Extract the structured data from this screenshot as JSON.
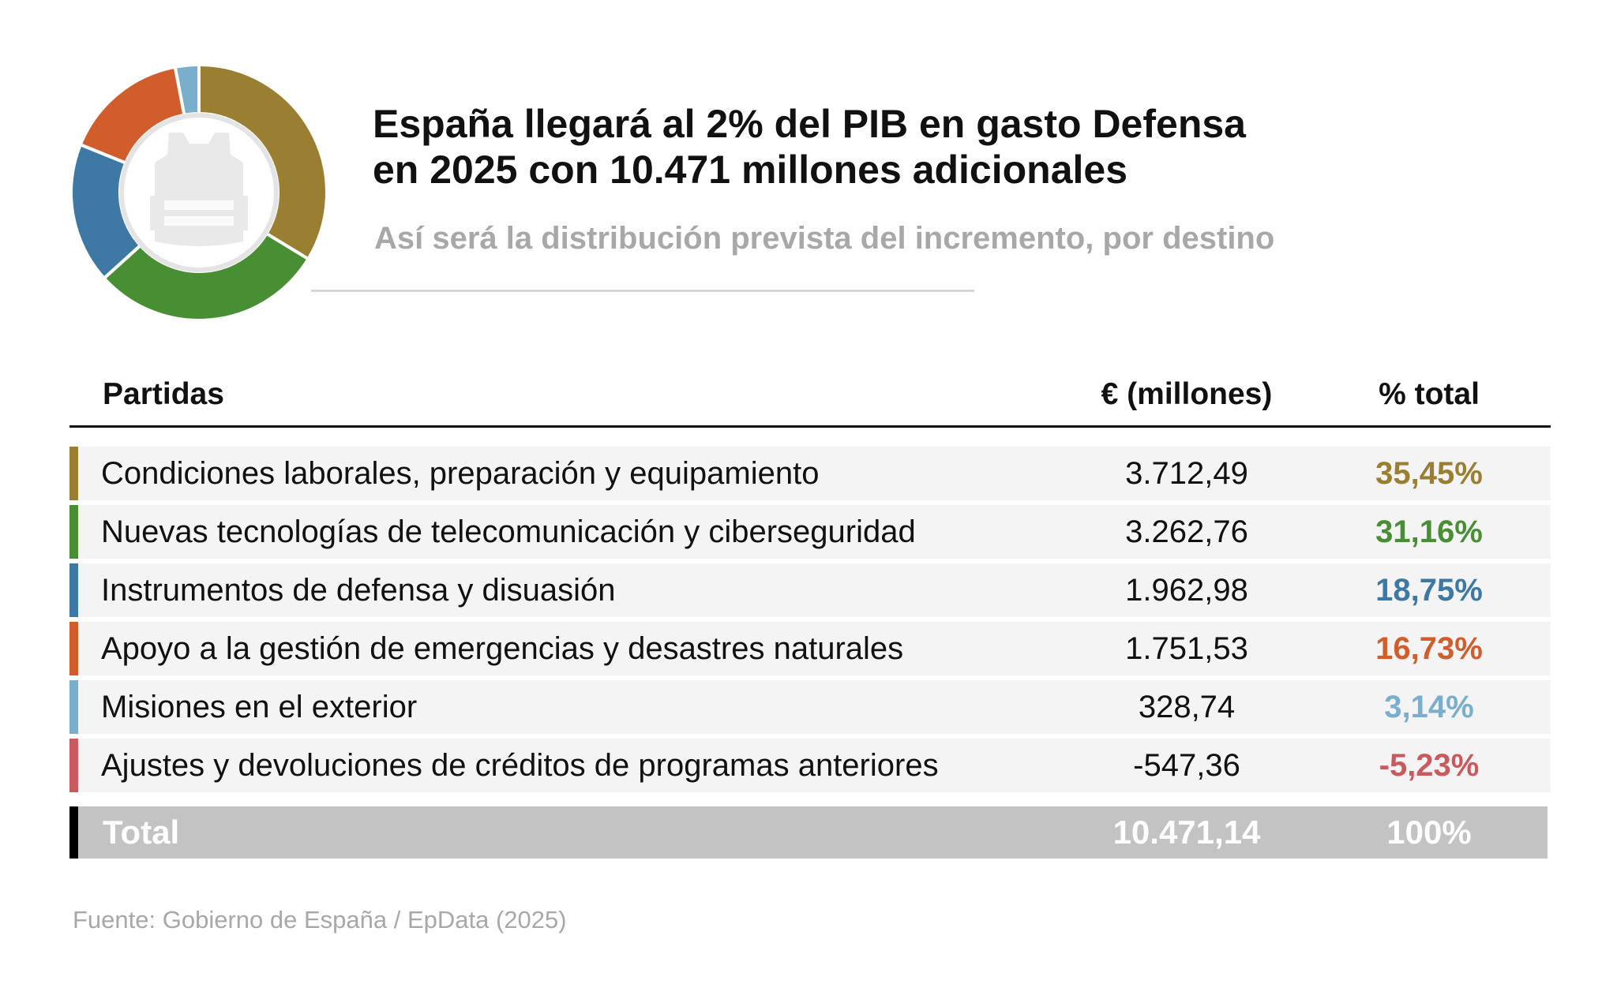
{
  "title_line1": "España llegará al 2% del PIB en gasto Defensa",
  "title_line2": "en 2025 con 10.471 millones adicionales",
  "subtitle": "Así será la distribución prevista del incremento, por destino",
  "table": {
    "headers": [
      "Partidas",
      "€ (millones)",
      "% total"
    ],
    "rows": [
      {
        "label": "Condiciones laborales, preparación y equipamiento",
        "value": "3.712,49",
        "pct": "35,45%",
        "color": "#9a7f32"
      },
      {
        "label": "Nuevas tecnologías de telecomunicación y ciberseguridad",
        "value": "3.262,76",
        "pct": "31,16%",
        "color": "#488f33"
      },
      {
        "label": "Instrumentos de defensa y disuasión",
        "value": "1.962,98",
        "pct": "18,75%",
        "color": "#3d79a4"
      },
      {
        "label": "Apoyo a la gestión de emergencias y desastres naturales",
        "value": "1.751,53",
        "pct": "16,73%",
        "color": "#d25d2c"
      },
      {
        "label": "Misiones en el exterior",
        "value": "328,74",
        "pct": "3,14%",
        "color": "#79aecd"
      },
      {
        "label": "Ajustes y devoluciones de créditos de programas anteriores",
        "value": "-547,36",
        "pct": "-5,23%",
        "color": "#c95a5d"
      }
    ],
    "total": {
      "label": "Total",
      "value": "10.471,14",
      "pct": "100%"
    }
  },
  "source": "Fuente: Gobierno de España / EpData (2025)",
  "icon": "bulletproof-vest-icon",
  "chart_data": {
    "type": "pie",
    "categories": [
      "Condiciones laborales, preparación y equipamiento",
      "Nuevas tecnologías de telecomunicación y ciberseguridad",
      "Instrumentos de defensa y disuasión",
      "Apoyo a la gestión de emergencias y desastres naturales",
      "Misiones en el exterior"
    ],
    "values": [
      3712.49,
      3262.76,
      1962.98,
      1751.53,
      328.74
    ],
    "colors": [
      "#9a7f32",
      "#488f33",
      "#3d79a4",
      "#d25d2c",
      "#79aecd"
    ]
  }
}
